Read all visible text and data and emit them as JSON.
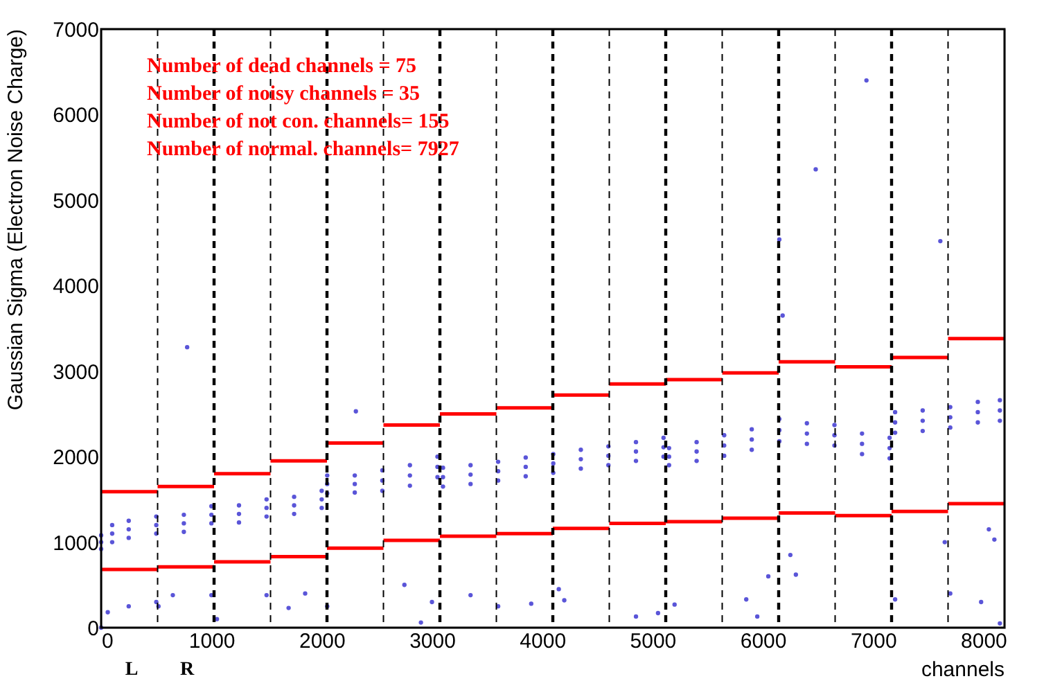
{
  "chart_data": {
    "type": "scatter",
    "xlabel": "channels",
    "ylabel": "Gaussian Sigma (Electron Noise Charge)",
    "xlim": [
      0,
      8192
    ],
    "xticks": [
      0,
      1000,
      2000,
      3000,
      4000,
      5000,
      6000,
      7000,
      8000
    ],
    "ylim": [
      0,
      7000
    ],
    "yticks": [
      0,
      1000,
      2000,
      3000,
      4000,
      5000,
      6000,
      7000
    ],
    "grid": false,
    "marker": "circle",
    "series": [
      {
        "color": "#5a55d8",
        "x": [
          0,
          100,
          250,
          500,
          750,
          1000,
          1250,
          1500,
          1750,
          2000,
          2050,
          2300,
          2550,
          2800,
          3050,
          3100,
          3350,
          3600,
          3850,
          4100,
          4350,
          4600,
          4850,
          5100,
          5150,
          5400,
          5650,
          5900,
          6150,
          6400,
          6650,
          6900,
          7150,
          7200,
          7450,
          7700,
          7950,
          8150,
          0,
          100,
          250,
          500,
          750,
          1000,
          1250,
          1500,
          1750,
          2000,
          2050,
          2300,
          2550,
          2800,
          3050,
          3100,
          3350,
          3600,
          3850,
          4100,
          4350,
          4600,
          4850,
          5100,
          5150,
          5400,
          5650,
          5900,
          6150,
          6400,
          6650,
          6900,
          7150,
          7200,
          7450,
          7700,
          7950,
          8150,
          0,
          100,
          250,
          500,
          750,
          1000,
          1250,
          1500,
          1750,
          2000,
          2050,
          2300,
          2550,
          2800,
          3050,
          3100,
          3350,
          3600,
          3850,
          4100,
          4350,
          4600,
          4850,
          5100,
          5150,
          5400,
          5650,
          5900,
          6150,
          6400,
          6650,
          6900,
          7150,
          7200,
          7450,
          7700,
          7950,
          8150,
          0,
          60,
          250,
          500,
          520,
          650,
          1000,
          1050,
          1500,
          1700,
          1850,
          2050,
          2750,
          2900,
          3000,
          3350,
          3600,
          3900,
          4150,
          4200,
          4850,
          5050,
          5200,
          5850,
          5950,
          6050,
          6250,
          6300,
          7200,
          7700,
          7650,
          8050,
          8100,
          7980,
          8150,
          780,
          2310,
          6150,
          6480,
          6940,
          6180,
          7610
        ],
        "values": [
          1000,
          1100,
          1150,
          1200,
          1220,
          1320,
          1330,
          1400,
          1430,
          1500,
          1680,
          1680,
          1720,
          1780,
          1880,
          1760,
          1790,
          1830,
          1880,
          1920,
          1970,
          2010,
          2060,
          2110,
          2000,
          2060,
          2130,
          2200,
          2310,
          2270,
          2250,
          2150,
          2100,
          2400,
          2420,
          2460,
          2520,
          2540,
          920,
          1000,
          1050,
          1100,
          1120,
          1220,
          1230,
          1300,
          1330,
          1400,
          1570,
          1580,
          1600,
          1660,
          1760,
          1650,
          1680,
          1720,
          1770,
          1810,
          1860,
          1900,
          1950,
          2000,
          1900,
          1950,
          2010,
          2080,
          2180,
          2150,
          2130,
          2030,
          1980,
          2280,
          2300,
          2340,
          2400,
          2420,
          1080,
          1200,
          1250,
          1300,
          1320,
          1420,
          1430,
          1500,
          1530,
          1600,
          1780,
          1780,
          1840,
          1900,
          2000,
          1870,
          1900,
          1940,
          1990,
          2030,
          2080,
          2120,
          2170,
          2220,
          2100,
          2170,
          2250,
          2320,
          2440,
          2390,
          2370,
          2270,
          2220,
          2520,
          2540,
          2580,
          2640,
          2660,
          0,
          180,
          250,
          300,
          250,
          380,
          380,
          100,
          380,
          230,
          400,
          250,
          500,
          60,
          300,
          380,
          250,
          280,
          450,
          320,
          130,
          170,
          270,
          330,
          130,
          600,
          850,
          620,
          330,
          400,
          1000,
          1150,
          1030,
          300,
          50,
          3280,
          2530,
          4540,
          5360,
          6400,
          3650,
          4520
        ]
      },
      {
        "type": "line",
        "marker": "none",
        "color": "#ff0000",
        "x": [
          0,
          512,
          512,
          1024,
          1024,
          1536,
          1536,
          2048,
          2048,
          2560,
          2560,
          3072,
          3072,
          3584,
          3584,
          4096,
          4096,
          4608,
          4608,
          5120,
          5120,
          5632,
          5632,
          6144,
          6144,
          6656,
          6656,
          7168,
          7168,
          7680,
          7680,
          8192
        ],
        "values": [
          1590,
          1590,
          1650,
          1650,
          1800,
          1800,
          1950,
          1950,
          2160,
          2160,
          2370,
          2370,
          2500,
          2500,
          2570,
          2570,
          2720,
          2720,
          2850,
          2850,
          2900,
          2900,
          2980,
          2980,
          3110,
          3110,
          3050,
          3050,
          3160,
          3160,
          3380,
          3380
        ]
      },
      {
        "type": "line",
        "marker": "none",
        "color": "#ff0000",
        "x": [
          0,
          512,
          512,
          1024,
          1024,
          1536,
          1536,
          2048,
          2048,
          2560,
          2560,
          3072,
          3072,
          3584,
          3584,
          4096,
          4096,
          4608,
          4608,
          5120,
          5120,
          5632,
          5632,
          6144,
          6144,
          6656,
          6656,
          7168,
          7168,
          7680,
          7680,
          8192
        ],
        "values": [
          680,
          680,
          710,
          710,
          770,
          770,
          830,
          830,
          930,
          930,
          1020,
          1020,
          1070,
          1070,
          1100,
          1100,
          1160,
          1160,
          1220,
          1220,
          1240,
          1240,
          1280,
          1280,
          1340,
          1340,
          1310,
          1310,
          1360,
          1360,
          1450,
          1450
        ]
      }
    ],
    "ref_lines": [
      {
        "axis": "x",
        "value": 512,
        "color": "#000000",
        "line_style": "dashed"
      },
      {
        "axis": "x",
        "value": 1024,
        "color": "#000000",
        "line_style": "dashed"
      },
      {
        "axis": "x",
        "value": 1536,
        "color": "#000000",
        "line_style": "dashed"
      },
      {
        "axis": "x",
        "value": 2048,
        "color": "#000000",
        "line_style": "dashed"
      },
      {
        "axis": "x",
        "value": 2560,
        "color": "#000000",
        "line_style": "dashed"
      },
      {
        "axis": "x",
        "value": 3072,
        "color": "#000000",
        "line_style": "dashed"
      },
      {
        "axis": "x",
        "value": 3584,
        "color": "#000000",
        "line_style": "dashed"
      },
      {
        "axis": "x",
        "value": 4096,
        "color": "#000000",
        "line_style": "dashed"
      },
      {
        "axis": "x",
        "value": 4608,
        "color": "#000000",
        "line_style": "dashed"
      },
      {
        "axis": "x",
        "value": 5120,
        "color": "#000000",
        "line_style": "dashed"
      },
      {
        "axis": "x",
        "value": 5632,
        "color": "#000000",
        "line_style": "dashed"
      },
      {
        "axis": "x",
        "value": 6144,
        "color": "#000000",
        "line_style": "dashed"
      },
      {
        "axis": "x",
        "value": 6656,
        "color": "#000000",
        "line_style": "dashed"
      },
      {
        "axis": "x",
        "value": 7168,
        "color": "#000000",
        "line_style": "dashed"
      },
      {
        "axis": "x",
        "value": 7680,
        "color": "#000000",
        "line_style": "dashed"
      }
    ],
    "annotations": [
      "Number of dead channels     = 75",
      "Number of noisy channels    = 35",
      "Number of not con. channels= 155",
      "Number of normal. channels= 7927",
      "L",
      "R"
    ]
  }
}
